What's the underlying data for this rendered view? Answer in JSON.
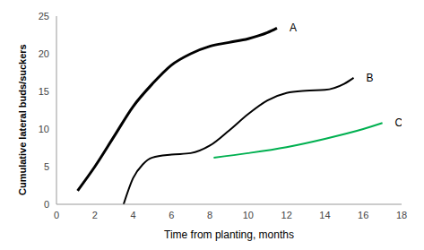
{
  "chart_data": {
    "type": "line",
    "x_label": "Time from planting, months",
    "y_label": "Cumulative lateral buds/suckers",
    "xlim": [
      0,
      18
    ],
    "xticks": [
      0,
      2,
      4,
      6,
      8,
      10,
      12,
      14,
      16,
      18
    ],
    "ylim": [
      0,
      25
    ],
    "yticks": [
      0,
      5,
      10,
      15,
      20,
      25
    ],
    "grid": false,
    "series": [
      {
        "name": "A",
        "color": "#000000",
        "x": [
          1.1,
          2,
          3,
          4,
          5,
          6,
          7,
          8,
          9,
          10,
          11,
          11.5
        ],
        "values": [
          1.8,
          5,
          9,
          13,
          16,
          18.5,
          20,
          21,
          21.5,
          22,
          22.8,
          23.4
        ]
      },
      {
        "name": "B",
        "color": "#000000",
        "x": [
          3.5,
          4,
          4.5,
          5,
          6,
          7,
          8,
          9,
          10,
          11,
          12,
          13,
          14,
          15,
          15.5
        ],
        "values": [
          0,
          3.5,
          5.3,
          6.2,
          6.6,
          6.8,
          7.8,
          9.8,
          12,
          13.8,
          14.8,
          15.1,
          15.2,
          16,
          16.8
        ]
      },
      {
        "name": "C",
        "color": "#00b050",
        "x": [
          8.2,
          10,
          12,
          14,
          16,
          17
        ],
        "values": [
          6.2,
          6.8,
          7.6,
          8.7,
          10,
          10.8
        ]
      }
    ]
  }
}
